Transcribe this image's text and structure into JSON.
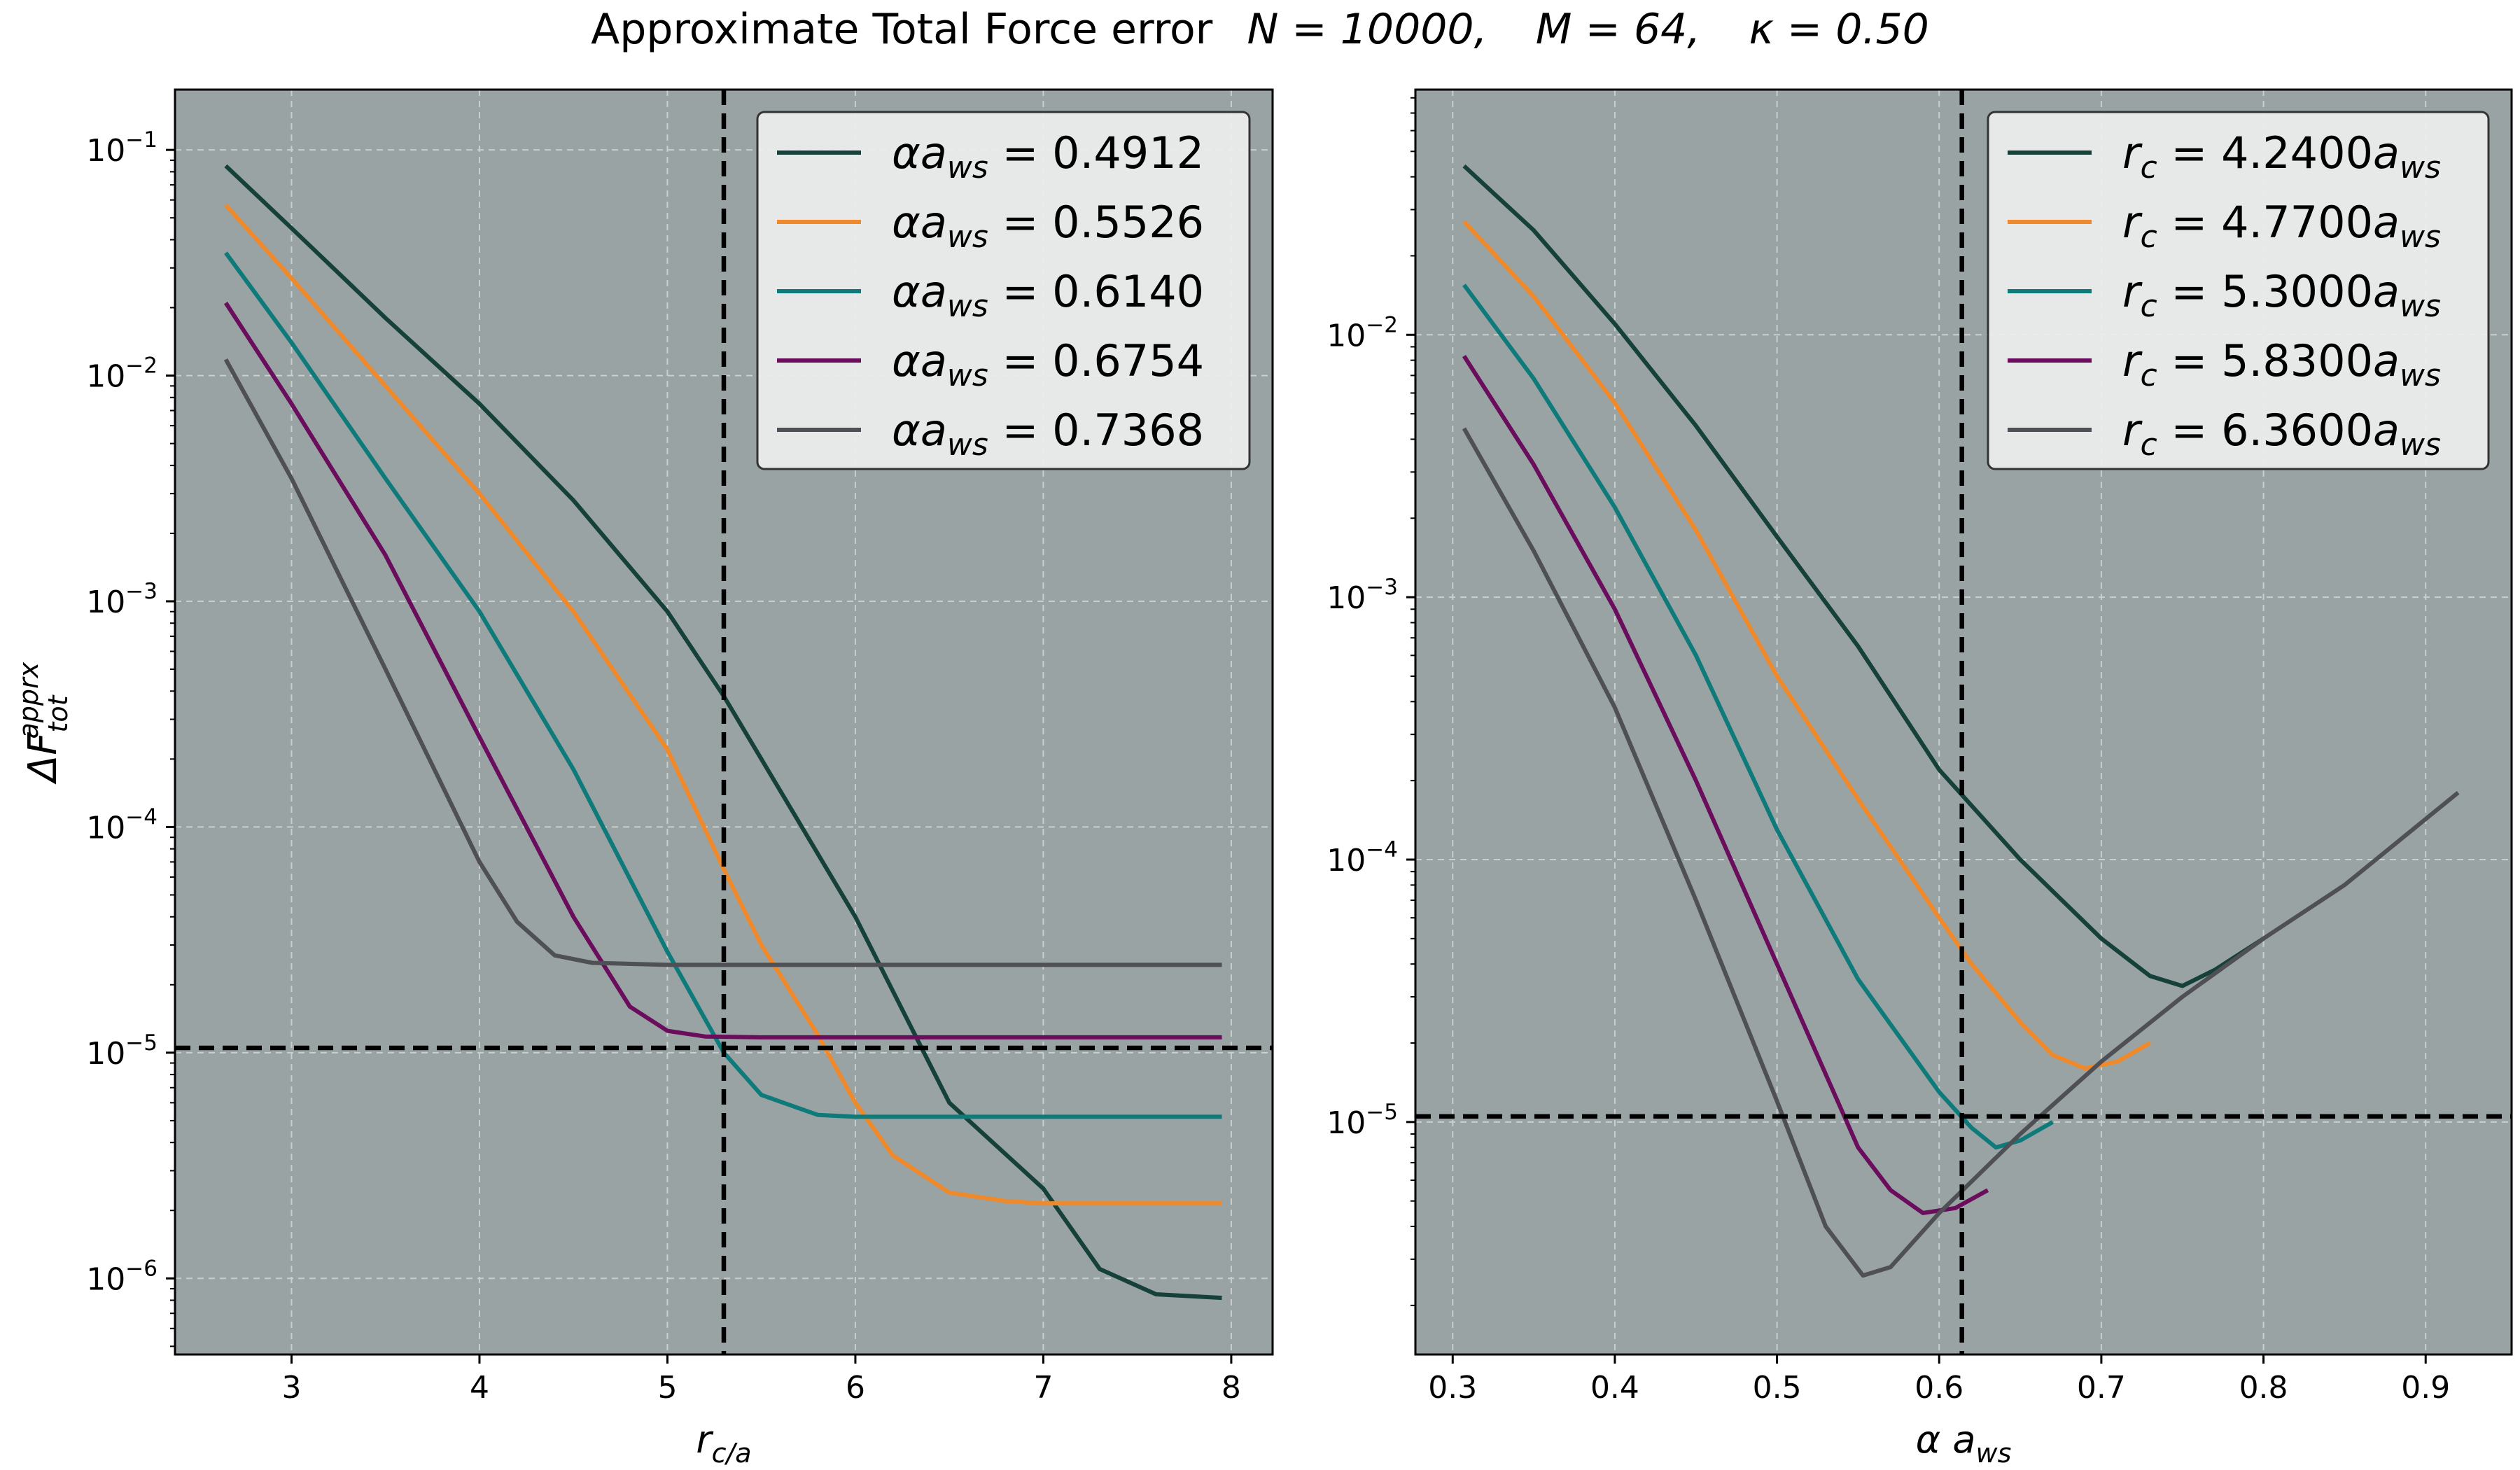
{
  "figure": {
    "title": {
      "prefix": "Approximate Total Force error",
      "n": "N = 10000,",
      "m": "M = 64,",
      "kappa": "κ = 0.50"
    }
  },
  "colors": {
    "plot_background": "#99a3a3",
    "grid": "#c9cfcf",
    "reference_line": "#000000"
  },
  "chart_data": [
    {
      "type": "line",
      "xlabel": "r_c/a_ws",
      "ylabel": "ΔF_tot^apprx",
      "xscale": "linear",
      "yscale": "log",
      "xlim": [
        2.38,
        8.22
      ],
      "ylim": [
        4.6e-07,
        0.185
      ],
      "xticks": [
        3,
        4,
        5,
        6,
        7,
        8
      ],
      "yticks": [
        1e-06,
        1e-05,
        0.0001,
        0.001,
        0.01,
        0.1
      ],
      "ytick_labels": [
        {
          "base": "10",
          "exp": "−6"
        },
        {
          "base": "10",
          "exp": "−5"
        },
        {
          "base": "10",
          "exp": "−4"
        },
        {
          "base": "10",
          "exp": "−3"
        },
        {
          "base": "10",
          "exp": "−2"
        },
        {
          "base": "10",
          "exp": "−1"
        }
      ],
      "grid": true,
      "legend_position": "top-right",
      "reference_lines": {
        "vertical_x": 5.3,
        "horizontal_y": 1.05e-05
      },
      "series": [
        {
          "name": "αa_ws = 0.4912",
          "legend_value": "0.4912",
          "color": "#16413a",
          "x": [
            2.65,
            3.0,
            3.5,
            4.0,
            4.5,
            5.0,
            5.3,
            5.5,
            6.0,
            6.5,
            7.0,
            7.3,
            7.6,
            7.95
          ],
          "y": [
            0.085,
            0.045,
            0.018,
            0.0075,
            0.0028,
            0.0009,
            0.00038,
            0.0002,
            4e-05,
            6e-06,
            2.5e-06,
            1.1e-06,
            8.5e-07,
            8.2e-07
          ]
        },
        {
          "name": "αa_ws = 0.5526",
          "legend_value": "0.5526",
          "color": "#f0892a",
          "x": [
            2.65,
            3.0,
            3.5,
            4.0,
            4.5,
            5.0,
            5.3,
            5.5,
            5.8,
            6.0,
            6.2,
            6.5,
            6.8,
            7.0,
            7.5,
            7.95
          ],
          "y": [
            0.057,
            0.027,
            0.009,
            0.003,
            0.0009,
            0.00022,
            6.5e-05,
            3e-05,
            1.2e-05,
            6e-06,
            3.5e-06,
            2.4e-06,
            2.2e-06,
            2.15e-06,
            2.15e-06,
            2.15e-06
          ]
        },
        {
          "name": "αa_ws = 0.6140",
          "legend_value": "0.6140",
          "color": "#0e7a7a",
          "x": [
            2.65,
            3.0,
            3.5,
            4.0,
            4.5,
            5.0,
            5.3,
            5.5,
            5.8,
            6.0,
            6.5,
            7.0,
            7.95
          ],
          "y": [
            0.035,
            0.014,
            0.0035,
            0.0009,
            0.00018,
            2.8e-05,
            1e-05,
            6.5e-06,
            5.3e-06,
            5.2e-06,
            5.2e-06,
            5.2e-06,
            5.2e-06
          ]
        },
        {
          "name": "αa_ws = 0.6754",
          "legend_value": "0.6754",
          "color": "#6a0d5c",
          "x": [
            2.65,
            3.0,
            3.5,
            4.0,
            4.5,
            4.8,
            5.0,
            5.2,
            5.5,
            6.0,
            7.0,
            7.95
          ],
          "y": [
            0.021,
            0.0075,
            0.0016,
            0.00025,
            4e-05,
            1.6e-05,
            1.25e-05,
            1.18e-05,
            1.17e-05,
            1.17e-05,
            1.17e-05,
            1.17e-05
          ]
        },
        {
          "name": "αa_ws = 0.7368",
          "legend_value": "0.7368",
          "color": "#4f4f56",
          "x": [
            2.65,
            3.0,
            3.5,
            4.0,
            4.2,
            4.4,
            4.6,
            5.0,
            6.0,
            7.0,
            7.95
          ],
          "y": [
            0.0118,
            0.0035,
            0.0005,
            7e-05,
            3.8e-05,
            2.7e-05,
            2.5e-05,
            2.45e-05,
            2.45e-05,
            2.45e-05,
            2.45e-05
          ]
        }
      ]
    },
    {
      "type": "line",
      "xlabel": "α a_ws",
      "ylabel": "",
      "xscale": "linear",
      "yscale": "log",
      "xlim": [
        0.277,
        0.953
      ],
      "ylim": [
        1.3e-06,
        0.086
      ],
      "xticks": [
        0.3,
        0.4,
        0.5,
        0.6,
        0.7,
        0.8,
        0.9
      ],
      "yticks": [
        1e-05,
        0.0001,
        0.001,
        0.01
      ],
      "ytick_labels": [
        {
          "base": "10",
          "exp": "−5"
        },
        {
          "base": "10",
          "exp": "−4"
        },
        {
          "base": "10",
          "exp": "−3"
        },
        {
          "base": "10",
          "exp": "−2"
        }
      ],
      "grid": true,
      "legend_position": "top-right",
      "reference_lines": {
        "vertical_x": 0.614,
        "horizontal_y": 1.05e-05
      },
      "series": [
        {
          "name": "r_c = 4.2400a_ws",
          "legend_value": "4.2400",
          "color": "#16413a",
          "x": [
            0.307,
            0.35,
            0.4,
            0.45,
            0.5,
            0.55,
            0.6,
            0.65,
            0.7,
            0.73,
            0.75,
            0.77,
            0.8
          ],
          "y": [
            0.044,
            0.025,
            0.011,
            0.0045,
            0.0017,
            0.00065,
            0.00022,
            0.0001,
            5e-05,
            3.6e-05,
            3.3e-05,
            3.8e-05,
            5e-05
          ]
        },
        {
          "name": "r_c = 4.7700a_ws",
          "legend_value": "4.7700",
          "color": "#f0892a",
          "x": [
            0.307,
            0.35,
            0.4,
            0.45,
            0.5,
            0.55,
            0.6,
            0.62,
            0.65,
            0.67,
            0.69,
            0.71,
            0.73
          ],
          "y": [
            0.027,
            0.014,
            0.0055,
            0.0018,
            0.0005,
            0.00017,
            6e-05,
            4e-05,
            2.4e-05,
            1.8e-05,
            1.6e-05,
            1.7e-05,
            2e-05
          ]
        },
        {
          "name": "r_c = 5.3000a_ws",
          "legend_value": "5.3000",
          "color": "#0e7a7a",
          "x": [
            0.307,
            0.35,
            0.4,
            0.45,
            0.5,
            0.55,
            0.6,
            0.62,
            0.635,
            0.65,
            0.67
          ],
          "y": [
            0.0155,
            0.0068,
            0.0022,
            0.0006,
            0.00013,
            3.5e-05,
            1.3e-05,
            9.5e-06,
            8e-06,
            8.5e-06,
            1e-05
          ]
        },
        {
          "name": "r_c = 5.8300a_ws",
          "legend_value": "5.8300",
          "color": "#6a0d5c",
          "x": [
            0.307,
            0.35,
            0.4,
            0.45,
            0.5,
            0.55,
            0.57,
            0.59,
            0.61,
            0.63
          ],
          "y": [
            0.0083,
            0.0032,
            0.0009,
            0.0002,
            4e-05,
            8e-06,
            5.5e-06,
            4.5e-06,
            4.7e-06,
            5.5e-06
          ]
        },
        {
          "name": "r_c = 6.3600a_ws",
          "legend_value": "6.3600",
          "color": "#4f4f56",
          "x": [
            0.307,
            0.35,
            0.4,
            0.45,
            0.5,
            0.53,
            0.553,
            0.57,
            0.6,
            0.65,
            0.7,
            0.75,
            0.8,
            0.85,
            0.92
          ],
          "y": [
            0.0044,
            0.0015,
            0.00038,
            7e-05,
            1.2e-05,
            4e-06,
            2.6e-06,
            2.8e-06,
            4.5e-06,
            9e-06,
            1.7e-05,
            3e-05,
            5e-05,
            8e-05,
            0.00018
          ]
        }
      ]
    }
  ]
}
